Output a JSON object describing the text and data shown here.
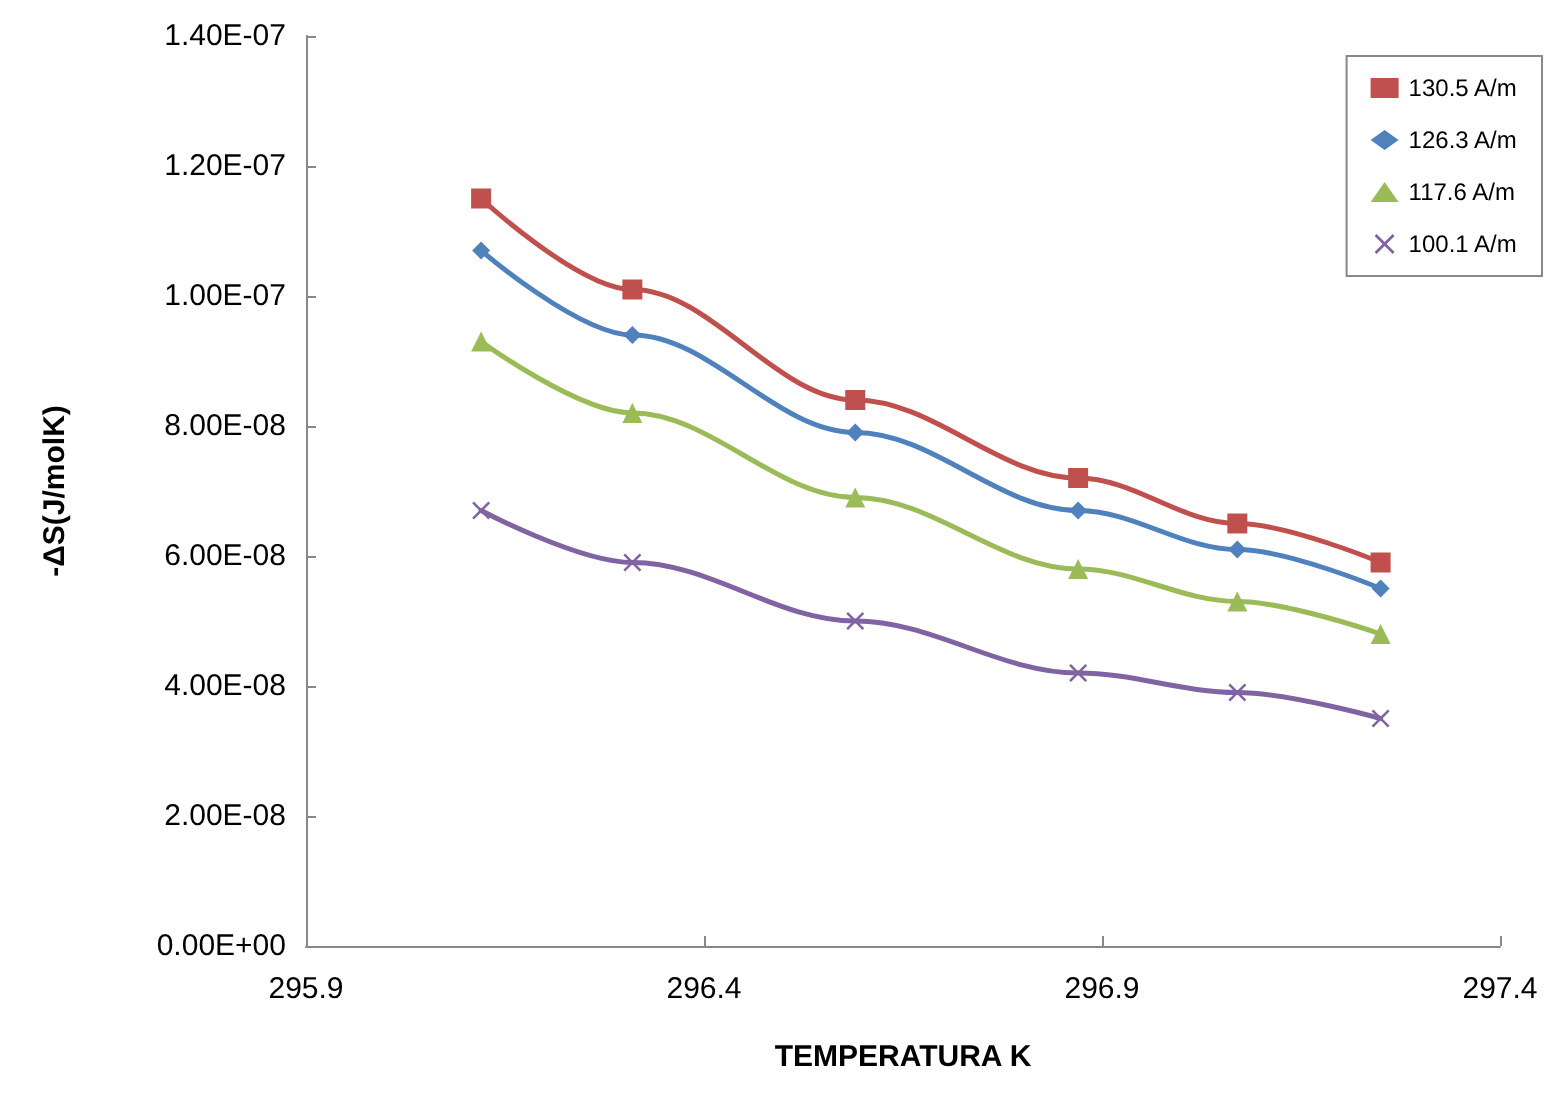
{
  "chart_data": {
    "type": "line",
    "xlabel": "TEMPERATURA K",
    "ylabel": "-ΔS(J/molK)",
    "x": [
      296.12,
      296.31,
      296.59,
      296.87,
      297.07,
      297.25
    ],
    "series": [
      {
        "name": "130.5 A/m",
        "color": "#c0504d",
        "marker": "square",
        "values": [
          1.15e-07,
          1.01e-07,
          8.4e-08,
          7.2e-08,
          6.5e-08,
          5.9e-08
        ]
      },
      {
        "name": "126.3 A/m",
        "color": "#4f81bd",
        "marker": "diamond",
        "values": [
          1.07e-07,
          9.4e-08,
          7.9e-08,
          6.7e-08,
          6.1e-08,
          5.5e-08
        ]
      },
      {
        "name": "117.6 A/m",
        "color": "#9bbb59",
        "marker": "triangle",
        "values": [
          9.3e-08,
          8.2e-08,
          6.9e-08,
          5.8e-08,
          5.3e-08,
          4.8e-08
        ]
      },
      {
        "name": "100.1 A/m",
        "color": "#8064a2",
        "marker": "cross",
        "values": [
          6.7e-08,
          5.9e-08,
          5e-08,
          4.2e-08,
          3.9e-08,
          3.5e-08
        ]
      }
    ],
    "xlim": [
      295.9,
      297.4
    ],
    "xticks": [
      295.9,
      296.4,
      296.9,
      297.4
    ],
    "ylim": [
      0,
      1.4e-07
    ],
    "yticks": [
      {
        "value": 0,
        "label": "0.00E+00"
      },
      {
        "value": 2e-08,
        "label": "2.00E-08"
      },
      {
        "value": 4e-08,
        "label": "4.00E-08"
      },
      {
        "value": 6e-08,
        "label": "6.00E-08"
      },
      {
        "value": 8e-08,
        "label": "8.00E-08"
      },
      {
        "value": 1e-07,
        "label": "1.00E-07"
      },
      {
        "value": 1.2e-07,
        "label": "1.20E-07"
      },
      {
        "value": 1.4e-07,
        "label": "1.40E-07"
      }
    ],
    "grid": false,
    "legend": "top right",
    "line_style": "solid"
  }
}
